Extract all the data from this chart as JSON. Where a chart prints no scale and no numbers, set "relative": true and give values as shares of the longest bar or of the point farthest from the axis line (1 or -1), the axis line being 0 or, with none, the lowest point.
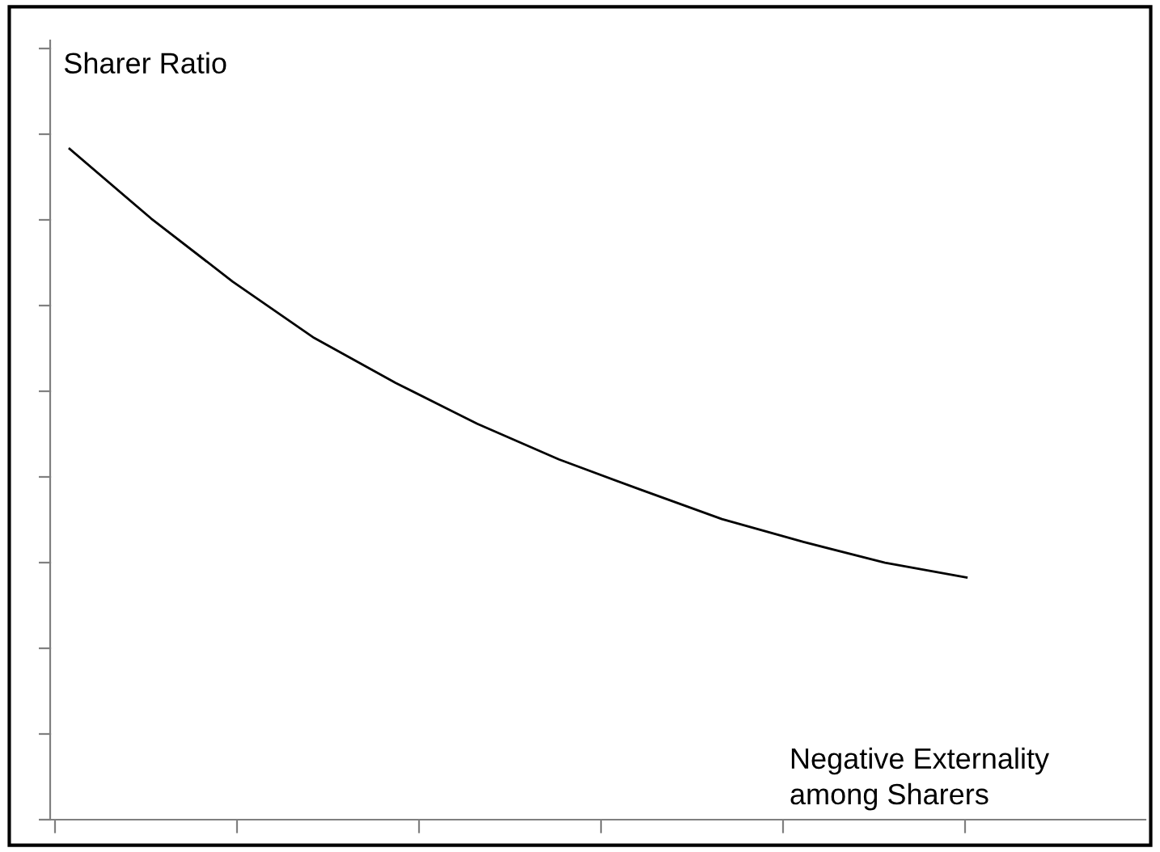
{
  "chart_data": {
    "type": "line",
    "relative": true,
    "xlabel": "Negative Externality\namong Sharers",
    "ylabel": "Sharer Ratio",
    "categories": [
      null,
      null,
      null,
      null,
      null,
      null,
      null,
      null,
      null,
      null,
      null,
      null
    ],
    "series": [
      {
        "color": "#000000",
        "values": [
          1.0,
          0.896,
          0.802,
          0.718,
          0.651,
          0.59,
          0.537,
          0.492,
          0.448,
          0.414,
          0.383,
          0.361
        ]
      }
    ],
    "marker": "none",
    "line_style": "solid",
    "grid": false,
    "legend": false
  }
}
